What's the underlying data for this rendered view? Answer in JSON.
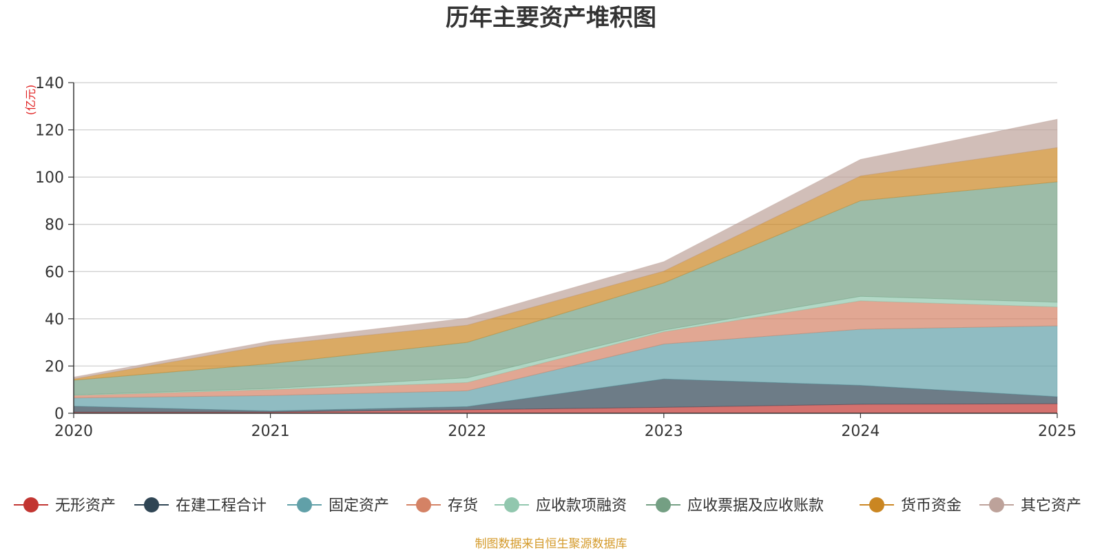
{
  "chart_data": {
    "type": "area",
    "stacked": true,
    "title": "历年主要资产堆积图",
    "unit_label": "(亿元)",
    "x": [
      "2020",
      "2021",
      "2022",
      "2023",
      "2024",
      "2025"
    ],
    "ylim": [
      0,
      140
    ],
    "yticks": [
      0,
      20,
      40,
      60,
      80,
      100,
      120,
      140
    ],
    "ytick_labels": [
      "0",
      "20",
      "40",
      "60",
      "80",
      "100",
      "120",
      "140"
    ],
    "grid": true,
    "legend_position": "bottom",
    "source_note": "制图数据来自恒生聚源数据库",
    "series": [
      {
        "name": "无形资产",
        "color": "#c23531",
        "values": [
          0.5,
          0.5,
          1.5,
          2.5,
          3.8,
          4.0
        ]
      },
      {
        "name": "在建工程合计",
        "color": "#2f4554",
        "values": [
          2.5,
          0.5,
          1.3,
          12.0,
          8.0,
          3.0
        ]
      },
      {
        "name": "固定资产",
        "color": "#61a0a8",
        "values": [
          3.5,
          6.5,
          6.7,
          14.8,
          23.8,
          30.0
        ]
      },
      {
        "name": "存货",
        "color": "#d48265",
        "values": [
          1.0,
          2.5,
          3.5,
          5.2,
          12.0,
          8.0
        ]
      },
      {
        "name": "应收款项融资",
        "color": "#91c7ae",
        "values": [
          0.3,
          0.5,
          2.0,
          0.7,
          1.9,
          2.0
        ]
      },
      {
        "name": "应收票据及应收账款",
        "color": "#749f83",
        "values": [
          6.2,
          10.5,
          15.0,
          20.0,
          40.5,
          51.0
        ]
      },
      {
        "name": "货币资金",
        "color": "#ca8622",
        "values": [
          0.5,
          8.0,
          7.3,
          5.0,
          10.5,
          14.5
        ]
      },
      {
        "name": "其它资产",
        "color": "#bda29a",
        "values": [
          0.8,
          1.5,
          3.0,
          4.0,
          7.0,
          12.0
        ]
      }
    ]
  }
}
